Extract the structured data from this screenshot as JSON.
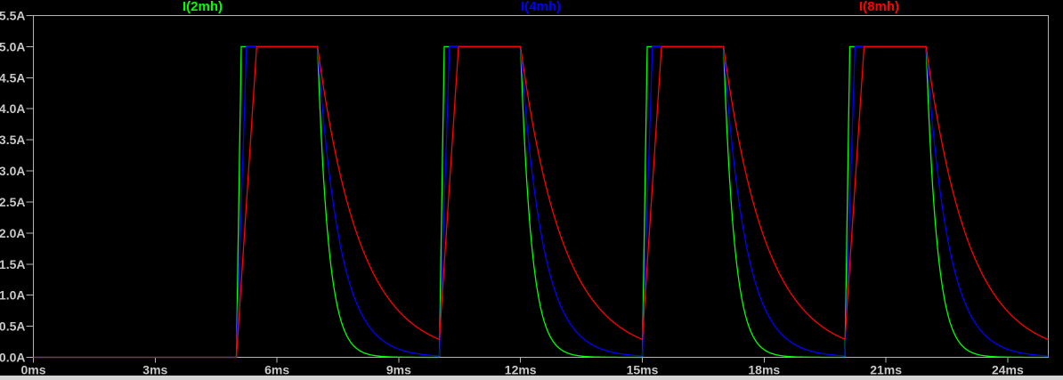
{
  "colors": {
    "background": "#000000",
    "plot_border": "#b4b4b4",
    "tick_text": "#c8c8c8",
    "bottom_strip": "#d4d4d4"
  },
  "legend": {
    "items": [
      {
        "label": "I(2mh)",
        "color": "#00ff00"
      },
      {
        "label": "I(4mh)",
        "color": "#0000ff"
      },
      {
        "label": "I(8mh)",
        "color": "#ff0000"
      }
    ]
  },
  "chart_data": {
    "type": "line",
    "title": "",
    "xlabel": "",
    "ylabel": "",
    "grid": false,
    "legend_position": "top",
    "x_axis": {
      "unit": "ms",
      "min": 0,
      "max": 25,
      "tick_step": 3,
      "tick_values": [
        0,
        3,
        6,
        9,
        12,
        15,
        18,
        21,
        24
      ],
      "tick_labels": [
        "0ms",
        "3ms",
        "6ms",
        "9ms",
        "12ms",
        "15ms",
        "18ms",
        "21ms",
        "24ms"
      ]
    },
    "y_axis": {
      "unit": "A",
      "min": 0,
      "max": 5.5,
      "tick_step": 0.5,
      "tick_values": [
        0,
        0.5,
        1.0,
        1.5,
        2.0,
        2.5,
        3.0,
        3.5,
        4.0,
        4.5,
        5.0,
        5.5
      ],
      "tick_labels": [
        "0.0A",
        "0.5A",
        "1.0A",
        "1.5A",
        "2.0A",
        "2.5A",
        "3.0A",
        "3.5A",
        "4.0A",
        "4.5A",
        "5.0A",
        "5.5A"
      ]
    },
    "excitation": {
      "pulse_starts_ms": [
        5,
        10,
        15,
        20
      ],
      "pulse_width_ms": 2,
      "peak_current_A": 5
    },
    "series": [
      {
        "name": "I(2mh)",
        "color": "#00ff00",
        "inductance_mH": 2,
        "rise_ms": 0.12,
        "decay_tau_ms": 0.27
      },
      {
        "name": "I(4mh)",
        "color": "#0000ff",
        "inductance_mH": 4,
        "rise_ms": 0.25,
        "decay_tau_ms": 0.55
      },
      {
        "name": "I(8mh)",
        "color": "#ff0000",
        "inductance_mH": 8,
        "rise_ms": 0.5,
        "decay_tau_ms": 1.05
      }
    ]
  }
}
